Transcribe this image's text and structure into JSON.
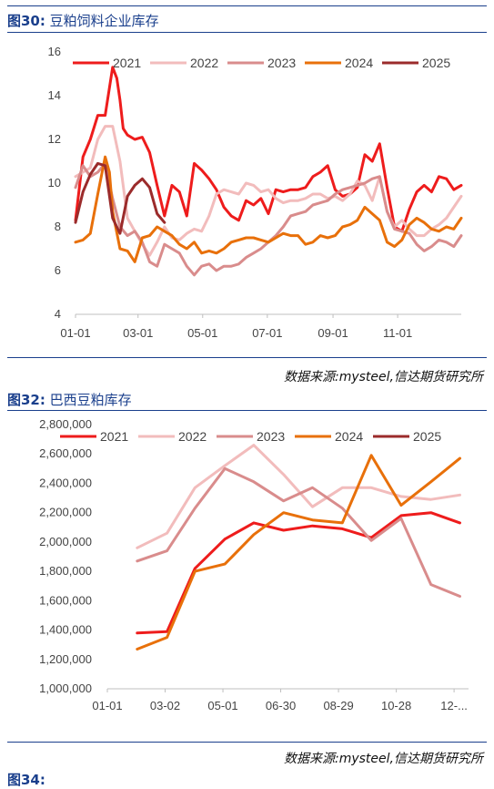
{
  "figures": [
    {
      "label": "图30:",
      "title_text": "豆粕饲料企业库存",
      "source": "数据来源:mysteel,信达期货研究所"
    },
    {
      "label": "图32:",
      "title_text": "巴西豆粕库存",
      "source": "数据来源:mysteel,信达期货研究所"
    }
  ],
  "next_title": "图34:",
  "series_colors": {
    "2021": "#ee1c1c",
    "2022": "#f2bcbc",
    "2023": "#d98c8c",
    "2024": "#e8700a",
    "2025": "#9b2b2b"
  },
  "chart_data": [
    {
      "type": "line",
      "title": "豆粕饲料企业库存",
      "x_tick_labels": [
        "01-01",
        "03-01",
        "05-01",
        "07-01",
        "09-01",
        "11-01"
      ],
      "y_ticks": [
        4,
        6,
        8,
        10,
        12,
        14,
        16
      ],
      "ylim": [
        4,
        16
      ],
      "legend_position": "top",
      "x_unit": "day of year",
      "x_ticks_doy": [
        1,
        60,
        121,
        182,
        244,
        305
      ],
      "xlim": [
        1,
        365
      ],
      "series": [
        {
          "name": "2021",
          "x": [
            1,
            8,
            15,
            22,
            29,
            36,
            40,
            43,
            46,
            50,
            57,
            64,
            71,
            78,
            85,
            92,
            99,
            106,
            113,
            120,
            127,
            134,
            141,
            148,
            155,
            162,
            169,
            176,
            183,
            190,
            197,
            204,
            211,
            218,
            225,
            232,
            239,
            246,
            253,
            260,
            267,
            274,
            281,
            288,
            295,
            302,
            309,
            316,
            323,
            330,
            337,
            344,
            351,
            358,
            365
          ],
          "y": [
            8.3,
            11.2,
            12.0,
            13.1,
            13.1,
            15.3,
            14.8,
            13.8,
            12.5,
            12.2,
            12.0,
            12.1,
            11.4,
            9.9,
            8.5,
            9.9,
            9.6,
            8.5,
            10.9,
            10.6,
            10.2,
            9.7,
            8.9,
            8.5,
            8.3,
            9.2,
            9.0,
            9.3,
            8.6,
            9.7,
            9.6,
            9.7,
            9.7,
            9.8,
            10.3,
            10.5,
            10.8,
            9.7,
            9.4,
            9.5,
            9.8,
            11.3,
            11.0,
            11.8,
            9.8,
            8.0,
            7.8,
            8.8,
            9.6,
            9.9,
            9.6,
            10.3,
            10.2,
            9.7,
            9.9
          ]
        },
        {
          "name": "2022",
          "x": [
            1,
            8,
            15,
            22,
            29,
            36,
            43,
            50,
            57,
            64,
            71,
            78,
            85,
            92,
            99,
            106,
            113,
            120,
            127,
            134,
            141,
            148,
            155,
            162,
            169,
            176,
            183,
            190,
            197,
            204,
            211,
            218,
            225,
            232,
            239,
            246,
            253,
            260,
            267,
            274,
            281,
            288,
            295,
            302,
            309,
            316,
            323,
            330,
            337,
            344,
            351,
            358,
            365
          ],
          "y": [
            10.3,
            10.5,
            10.7,
            12.0,
            12.6,
            12.6,
            11.0,
            8.4,
            7.8,
            7.2,
            6.7,
            7.3,
            8.0,
            7.5,
            7.4,
            7.7,
            7.9,
            7.8,
            8.5,
            9.5,
            9.7,
            9.6,
            9.5,
            10.0,
            9.9,
            9.6,
            9.7,
            9.3,
            9.1,
            9.2,
            9.2,
            9.3,
            9.5,
            9.5,
            9.3,
            9.4,
            9.2,
            9.5,
            10.1,
            9.9,
            9.2,
            10.3,
            8.7,
            8.0,
            8.3,
            7.9,
            7.6,
            7.6,
            7.9,
            8.1,
            8.4,
            8.9,
            9.4
          ]
        },
        {
          "name": "2023",
          "x": [
            1,
            8,
            15,
            22,
            29,
            36,
            43,
            50,
            57,
            64,
            71,
            78,
            85,
            92,
            99,
            106,
            113,
            120,
            127,
            134,
            141,
            148,
            155,
            162,
            169,
            176,
            183,
            190,
            197,
            204,
            211,
            218,
            225,
            232,
            239,
            246,
            253,
            260,
            267,
            274,
            281,
            288,
            295,
            302,
            309,
            316,
            323,
            330,
            337,
            344,
            351,
            358,
            365
          ],
          "y": [
            9.8,
            10.8,
            10.3,
            10.5,
            10.9,
            9.3,
            8.0,
            7.6,
            7.8,
            7.3,
            6.4,
            6.2,
            7.2,
            7.0,
            6.8,
            6.2,
            5.8,
            6.2,
            6.3,
            6.0,
            6.2,
            6.2,
            6.3,
            6.6,
            6.8,
            7.0,
            7.3,
            7.6,
            8.0,
            8.5,
            8.6,
            8.7,
            9.0,
            9.1,
            9.2,
            9.5,
            9.7,
            9.8,
            9.9,
            10.0,
            10.2,
            10.3,
            8.7,
            7.9,
            7.8,
            7.7,
            7.2,
            6.9,
            7.1,
            7.4,
            7.3,
            7.1,
            7.6
          ]
        },
        {
          "name": "2024",
          "x": [
            1,
            8,
            15,
            22,
            29,
            33,
            36,
            43,
            50,
            57,
            64,
            71,
            78,
            85,
            92,
            99,
            106,
            113,
            120,
            127,
            134,
            141,
            148,
            155,
            162,
            169,
            176,
            183,
            190,
            197,
            204,
            211,
            218,
            225,
            232,
            239,
            246,
            253,
            260,
            267,
            274,
            281,
            288,
            295,
            302,
            309,
            316,
            323,
            330,
            337,
            344,
            351,
            358,
            365
          ],
          "y": [
            7.3,
            7.4,
            7.7,
            9.5,
            11.2,
            10.5,
            8.7,
            7.0,
            6.9,
            6.4,
            7.5,
            7.6,
            8.0,
            7.8,
            7.6,
            7.2,
            7.0,
            7.3,
            6.8,
            6.9,
            6.8,
            7.0,
            7.3,
            7.4,
            7.5,
            7.5,
            7.4,
            7.3,
            7.5,
            7.7,
            7.6,
            7.6,
            7.2,
            7.3,
            7.6,
            7.5,
            7.6,
            8.0,
            8.1,
            8.3,
            8.9,
            8.6,
            8.3,
            7.3,
            7.1,
            7.4,
            8.1,
            8.4,
            8.2,
            7.9,
            7.8,
            8.0,
            7.9,
            8.4
          ]
        },
        {
          "name": "2025",
          "x": [
            1,
            8,
            15,
            22,
            29,
            36,
            43,
            50,
            57,
            64,
            71,
            78,
            85
          ],
          "y": [
            8.2,
            9.6,
            10.4,
            10.9,
            10.8,
            8.4,
            7.7,
            9.4,
            9.9,
            10.2,
            9.8,
            8.6,
            8.2
          ]
        }
      ]
    },
    {
      "type": "line",
      "title": "巴西豆粕库存",
      "x_tick_labels": [
        "01-01",
        "03-02",
        "05-01",
        "06-30",
        "08-29",
        "10-28",
        "12-..."
      ],
      "y_ticks": [
        1000000,
        1200000,
        1400000,
        1600000,
        1800000,
        2000000,
        2200000,
        2400000,
        2600000,
        2800000
      ],
      "y_tick_labels": [
        "1,000,000",
        "1,200,000",
        "1,400,000",
        "1,600,000",
        "1,800,000",
        "2,000,000",
        "2,200,000",
        "2,400,000",
        "2,600,000",
        "2,800,000"
      ],
      "ylim": [
        1000000,
        2800000
      ],
      "legend_position": "top",
      "x_unit": "day of year",
      "x_ticks_doy": [
        1,
        61,
        121,
        181,
        241,
        301,
        361
      ],
      "xlim": [
        1,
        376
      ],
      "series": [
        {
          "name": "2021",
          "x": [
            32,
            63,
            92,
            123,
            153,
            184,
            214,
            245,
            275,
            306,
            337,
            367
          ],
          "y": [
            1380000,
            1390000,
            1820000,
            2020000,
            2130000,
            2080000,
            2110000,
            2090000,
            2030000,
            2180000,
            2200000,
            2130000
          ]
        },
        {
          "name": "2022",
          "x": [
            32,
            63,
            92,
            123,
            153,
            184,
            214,
            245,
            275,
            306,
            337,
            367
          ],
          "y": [
            1960000,
            2060000,
            2370000,
            2520000,
            2660000,
            2460000,
            2240000,
            2370000,
            2370000,
            2310000,
            2290000,
            2320000
          ]
        },
        {
          "name": "2023",
          "x": [
            32,
            63,
            92,
            123,
            153,
            184,
            214,
            245,
            275,
            306,
            337,
            367
          ],
          "y": [
            1870000,
            1940000,
            2230000,
            2500000,
            2410000,
            2280000,
            2370000,
            2230000,
            2010000,
            2160000,
            1710000,
            1630000
          ]
        },
        {
          "name": "2024",
          "x": [
            32,
            63,
            92,
            123,
            153,
            184,
            214,
            245,
            275,
            306,
            337,
            367
          ],
          "y": [
            1270000,
            1350000,
            1800000,
            1850000,
            2050000,
            2200000,
            2150000,
            2130000,
            2590000,
            2250000,
            2410000,
            2570000
          ]
        }
      ],
      "legend_series": [
        "2021",
        "2022",
        "2023",
        "2024",
        "2025"
      ]
    }
  ]
}
